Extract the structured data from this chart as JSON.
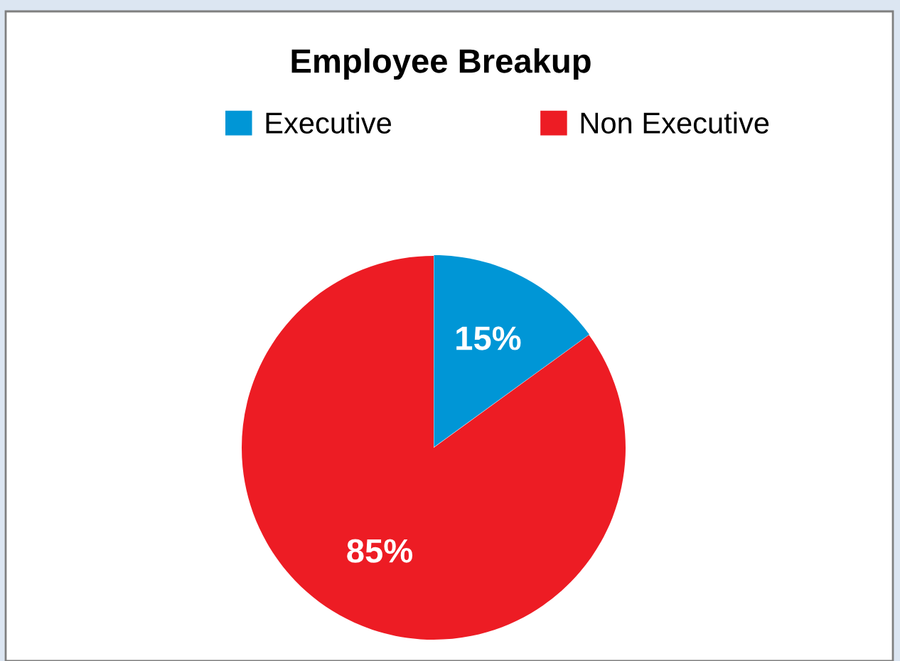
{
  "chart_data": {
    "type": "pie",
    "title": "Employee Breakup",
    "categories": [
      "Executive",
      "Non Executive"
    ],
    "values": [
      15,
      85
    ],
    "colors": [
      "#0096d6",
      "#ed1c24"
    ],
    "value_labels": [
      "15%",
      "85%"
    ],
    "legend": "top"
  }
}
